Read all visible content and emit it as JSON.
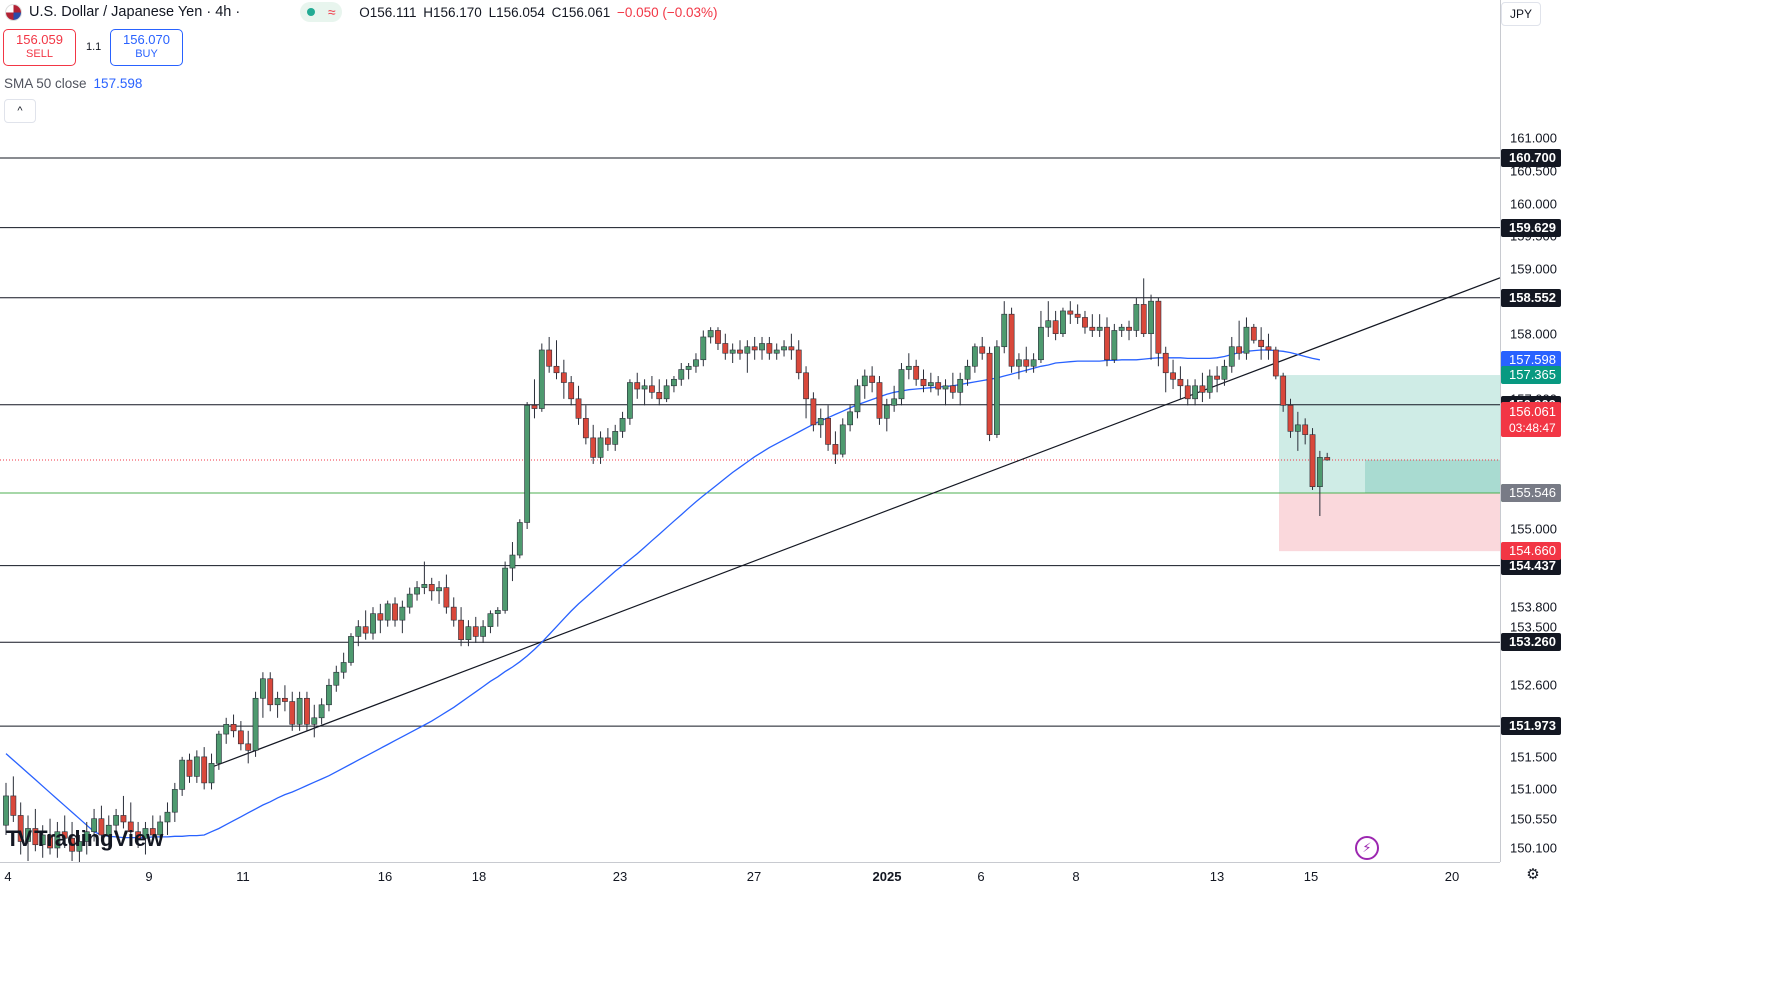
{
  "header": {
    "title": "U.S. Dollar / Japanese Yen · 4h ·",
    "wave_symbol": "≈",
    "ohlc": {
      "o": "O156.111",
      "h": "H156.170",
      "l": "L156.054",
      "c": "C156.061",
      "chg": "−0.050 (−0.03%)"
    }
  },
  "trade": {
    "sell_price": "156.059",
    "sell_label": "SELL",
    "spread": "1.1",
    "buy_price": "156.070",
    "buy_label": "BUY"
  },
  "indicator": {
    "label": "SMA 50 close",
    "value": "157.598",
    "collapse": "^"
  },
  "axis": {
    "currency": "JPY"
  },
  "colors": {
    "up": "#4e9a6f",
    "down": "#d9483b",
    "sma": "#2962ff",
    "tp_zone": "#bfe6dd",
    "sl_zone": "#f9d4d8"
  },
  "chart_data": {
    "type": "candlestick",
    "symbol": "USD/JPY",
    "timeframe": "4h",
    "y_ticks": [
      "161.000",
      "160.500",
      "160.000",
      "159.500",
      "159.000",
      "158.500",
      "158.000",
      "157.500",
      "157.000",
      "156.500",
      "155.500",
      "155.000",
      "154.500",
      "153.800",
      "153.500",
      "152.600",
      "151.500",
      "151.000",
      "150.550",
      "150.100"
    ],
    "x_ticks": [
      "4",
      "9",
      "11",
      "16",
      "18",
      "23",
      "27",
      "2025",
      "6",
      "8",
      "13",
      "15",
      "20"
    ],
    "horizontal_levels": [
      160.7,
      159.629,
      158.552,
      156.909,
      154.437,
      153.26,
      151.973
    ],
    "current_price": 156.061,
    "countdown": "03:48:47",
    "sma_50": 157.598,
    "sma_label_value": "157.598",
    "position": {
      "target": "157.365",
      "entry": "155.553",
      "low_marker": "155.546",
      "stop": "154.660"
    },
    "level_labels": [
      "160.700",
      "159.629",
      "158.552",
      "156.909",
      "154.437",
      "153.260",
      "151.973"
    ],
    "trendline": {
      "from": {
        "date": "Dec 10",
        "price": 151.35
      },
      "to": {
        "date": "Jan 16",
        "price": 157.75
      }
    },
    "candles": [
      [
        150.45,
        151.1,
        150.3,
        150.9
      ],
      [
        150.9,
        151.2,
        150.5,
        150.6
      ],
      [
        150.6,
        150.8,
        150.0,
        150.2
      ],
      [
        150.2,
        150.6,
        149.9,
        150.4
      ],
      [
        150.4,
        150.7,
        150.05,
        150.15
      ],
      [
        150.15,
        150.45,
        149.95,
        150.3
      ],
      [
        150.3,
        150.55,
        150.0,
        150.1
      ],
      [
        150.1,
        150.5,
        149.95,
        150.35
      ],
      [
        150.35,
        150.6,
        150.1,
        150.25
      ],
      [
        150.25,
        150.5,
        149.9,
        150.05
      ],
      [
        150.05,
        150.3,
        149.85,
        150.2
      ],
      [
        150.2,
        150.5,
        150.0,
        150.35
      ],
      [
        150.35,
        150.7,
        150.2,
        150.55
      ],
      [
        150.55,
        150.75,
        150.2,
        150.3
      ],
      [
        150.3,
        150.6,
        150.1,
        150.45
      ],
      [
        150.45,
        150.7,
        150.3,
        150.6
      ],
      [
        150.6,
        150.9,
        150.4,
        150.5
      ],
      [
        150.5,
        150.8,
        150.2,
        150.35
      ],
      [
        150.35,
        150.5,
        150.1,
        150.25
      ],
      [
        150.25,
        150.5,
        150.0,
        150.4
      ],
      [
        150.4,
        150.6,
        150.2,
        150.3
      ],
      [
        150.3,
        150.6,
        150.15,
        150.5
      ],
      [
        150.5,
        150.8,
        150.3,
        150.65
      ],
      [
        150.65,
        151.1,
        150.5,
        151.0
      ],
      [
        151.0,
        151.5,
        150.9,
        151.45
      ],
      [
        151.45,
        151.55,
        151.1,
        151.2
      ],
      [
        151.2,
        151.6,
        151.1,
        151.5
      ],
      [
        151.5,
        151.65,
        151.0,
        151.1
      ],
      [
        151.1,
        151.55,
        151.0,
        151.4
      ],
      [
        151.4,
        151.9,
        151.3,
        151.85
      ],
      [
        151.85,
        152.1,
        151.7,
        152.0
      ],
      [
        152.0,
        152.15,
        151.8,
        151.9
      ],
      [
        151.9,
        152.05,
        151.6,
        151.7
      ],
      [
        151.7,
        151.9,
        151.4,
        151.6
      ],
      [
        151.6,
        152.5,
        151.5,
        152.4
      ],
      [
        152.4,
        152.8,
        152.1,
        152.7
      ],
      [
        152.7,
        152.8,
        152.2,
        152.3
      ],
      [
        152.3,
        152.5,
        152.1,
        152.4
      ],
      [
        152.4,
        152.6,
        152.2,
        152.35
      ],
      [
        152.35,
        152.5,
        151.9,
        152.0
      ],
      [
        152.0,
        152.5,
        151.9,
        152.4
      ],
      [
        152.4,
        152.5,
        151.9,
        152.0
      ],
      [
        152.0,
        152.3,
        151.8,
        152.1
      ],
      [
        152.1,
        152.4,
        152.0,
        152.3
      ],
      [
        152.3,
        152.7,
        152.2,
        152.6
      ],
      [
        152.6,
        152.9,
        152.5,
        152.8
      ],
      [
        152.8,
        153.1,
        152.7,
        152.95
      ],
      [
        152.95,
        153.4,
        152.9,
        153.35
      ],
      [
        153.35,
        153.6,
        153.2,
        153.5
      ],
      [
        153.5,
        153.75,
        153.3,
        153.4
      ],
      [
        153.4,
        153.8,
        153.3,
        153.7
      ],
      [
        153.7,
        153.85,
        153.4,
        153.6
      ],
      [
        153.6,
        153.9,
        153.5,
        153.85
      ],
      [
        153.85,
        153.95,
        153.5,
        153.6
      ],
      [
        153.6,
        153.9,
        153.4,
        153.8
      ],
      [
        153.8,
        154.1,
        153.7,
        154.0
      ],
      [
        154.0,
        154.2,
        153.9,
        154.1
      ],
      [
        154.1,
        154.5,
        154.0,
        154.15
      ],
      [
        154.15,
        154.25,
        153.9,
        154.05
      ],
      [
        154.05,
        154.2,
        153.85,
        154.1
      ],
      [
        154.1,
        154.3,
        153.7,
        153.8
      ],
      [
        153.8,
        153.95,
        153.5,
        153.6
      ],
      [
        153.6,
        153.8,
        153.2,
        153.3
      ],
      [
        153.3,
        153.6,
        153.2,
        153.5
      ],
      [
        153.5,
        153.65,
        153.25,
        153.35
      ],
      [
        153.35,
        153.6,
        153.25,
        153.5
      ],
      [
        153.5,
        153.75,
        153.4,
        153.7
      ],
      [
        153.7,
        153.8,
        153.5,
        153.75
      ],
      [
        153.75,
        154.5,
        153.7,
        154.4
      ],
      [
        154.4,
        154.8,
        154.2,
        154.6
      ],
      [
        154.6,
        155.15,
        154.55,
        155.1
      ],
      [
        155.1,
        156.95,
        155.0,
        156.9
      ],
      [
        156.9,
        157.3,
        156.7,
        156.85
      ],
      [
        156.85,
        157.85,
        156.8,
        157.75
      ],
      [
        157.75,
        157.95,
        157.4,
        157.5
      ],
      [
        157.5,
        157.9,
        157.3,
        157.4
      ],
      [
        157.4,
        157.6,
        157.0,
        157.25
      ],
      [
        157.25,
        157.35,
        156.9,
        157.0
      ],
      [
        157.0,
        157.2,
        156.6,
        156.7
      ],
      [
        156.7,
        156.9,
        156.3,
        156.4
      ],
      [
        156.4,
        156.6,
        156.0,
        156.1
      ],
      [
        156.1,
        156.5,
        156.0,
        156.4
      ],
      [
        156.4,
        156.55,
        156.2,
        156.3
      ],
      [
        156.3,
        156.6,
        156.2,
        156.5
      ],
      [
        156.5,
        156.8,
        156.4,
        156.7
      ],
      [
        156.7,
        157.3,
        156.6,
        157.25
      ],
      [
        157.25,
        157.4,
        157.0,
        157.15
      ],
      [
        157.15,
        157.3,
        156.9,
        157.2
      ],
      [
        157.2,
        157.35,
        157.0,
        157.1
      ],
      [
        157.1,
        157.3,
        156.9,
        157.0
      ],
      [
        157.0,
        157.3,
        156.95,
        157.2
      ],
      [
        157.2,
        157.35,
        157.1,
        157.3
      ],
      [
        157.3,
        157.55,
        157.2,
        157.45
      ],
      [
        157.45,
        157.55,
        157.3,
        157.5
      ],
      [
        157.5,
        157.7,
        157.4,
        157.6
      ],
      [
        157.6,
        158.05,
        157.5,
        157.95
      ],
      [
        157.95,
        158.1,
        157.85,
        158.05
      ],
      [
        158.05,
        158.1,
        157.75,
        157.85
      ],
      [
        157.85,
        158.0,
        157.6,
        157.7
      ],
      [
        157.7,
        157.85,
        157.55,
        157.75
      ],
      [
        157.75,
        157.9,
        157.6,
        157.7
      ],
      [
        157.7,
        157.9,
        157.4,
        157.8
      ],
      [
        157.8,
        157.95,
        157.6,
        157.75
      ],
      [
        157.75,
        157.95,
        157.6,
        157.85
      ],
      [
        157.85,
        157.95,
        157.6,
        157.7
      ],
      [
        157.7,
        157.85,
        157.6,
        157.75
      ],
      [
        157.75,
        157.9,
        157.65,
        157.8
      ],
      [
        157.8,
        158.0,
        157.6,
        157.75
      ],
      [
        157.75,
        157.9,
        157.3,
        157.4
      ],
      [
        157.4,
        157.5,
        156.7,
        157.0
      ],
      [
        157.0,
        157.1,
        156.5,
        156.6
      ],
      [
        156.6,
        156.85,
        156.4,
        156.7
      ],
      [
        156.7,
        156.9,
        156.2,
        156.3
      ],
      [
        156.3,
        156.5,
        156.0,
        156.15
      ],
      [
        156.15,
        156.7,
        156.1,
        156.6
      ],
      [
        156.6,
        156.9,
        156.5,
        156.8
      ],
      [
        156.8,
        157.3,
        156.7,
        157.2
      ],
      [
        157.2,
        157.45,
        157.0,
        157.35
      ],
      [
        157.35,
        157.5,
        157.1,
        157.25
      ],
      [
        157.25,
        157.35,
        156.6,
        156.7
      ],
      [
        156.7,
        157.0,
        156.5,
        156.9
      ],
      [
        156.9,
        157.2,
        156.8,
        157.0
      ],
      [
        157.0,
        157.55,
        156.9,
        157.45
      ],
      [
        157.45,
        157.7,
        157.3,
        157.5
      ],
      [
        157.5,
        157.6,
        157.2,
        157.3
      ],
      [
        157.3,
        157.45,
        157.1,
        157.2
      ],
      [
        157.2,
        157.4,
        157.1,
        157.25
      ],
      [
        157.25,
        157.35,
        157.05,
        157.15
      ],
      [
        157.15,
        157.3,
        156.9,
        157.2
      ],
      [
        157.2,
        157.4,
        157.0,
        157.1
      ],
      [
        157.1,
        157.4,
        156.9,
        157.3
      ],
      [
        157.3,
        157.6,
        157.2,
        157.5
      ],
      [
        157.5,
        157.85,
        157.4,
        157.8
      ],
      [
        157.8,
        157.95,
        157.6,
        157.7
      ],
      [
        157.7,
        157.8,
        156.35,
        156.45
      ],
      [
        156.45,
        157.9,
        156.4,
        157.8
      ],
      [
        157.8,
        158.5,
        157.7,
        158.3
      ],
      [
        158.3,
        158.4,
        157.4,
        157.5
      ],
      [
        157.5,
        157.7,
        157.3,
        157.6
      ],
      [
        157.6,
        157.8,
        157.4,
        157.5
      ],
      [
        157.5,
        157.7,
        157.4,
        157.6
      ],
      [
        157.6,
        158.35,
        157.55,
        158.1
      ],
      [
        158.1,
        158.5,
        157.95,
        158.2
      ],
      [
        158.2,
        158.35,
        157.9,
        158.0
      ],
      [
        158.0,
        158.4,
        157.95,
        158.35
      ],
      [
        158.35,
        158.5,
        158.15,
        158.3
      ],
      [
        158.3,
        158.45,
        158.15,
        158.25
      ],
      [
        158.25,
        158.35,
        158.0,
        158.1
      ],
      [
        158.1,
        158.3,
        157.95,
        158.05
      ],
      [
        158.05,
        158.3,
        157.95,
        158.1
      ],
      [
        158.1,
        158.25,
        157.5,
        157.6
      ],
      [
        157.6,
        158.15,
        157.55,
        158.05
      ],
      [
        158.05,
        158.15,
        157.95,
        158.1
      ],
      [
        158.1,
        158.2,
        157.9,
        158.05
      ],
      [
        158.05,
        158.55,
        157.95,
        158.45
      ],
      [
        158.45,
        158.85,
        157.95,
        158.0
      ],
      [
        158.0,
        158.6,
        157.6,
        158.5
      ],
      [
        158.5,
        158.55,
        157.5,
        157.7
      ],
      [
        157.7,
        157.8,
        157.1,
        157.4
      ],
      [
        157.4,
        157.6,
        157.15,
        157.3
      ],
      [
        157.3,
        157.5,
        157.0,
        157.2
      ],
      [
        157.2,
        157.3,
        156.9,
        157.0
      ],
      [
        157.0,
        157.3,
        156.9,
        157.2
      ],
      [
        157.2,
        157.4,
        156.95,
        157.1
      ],
      [
        157.1,
        157.45,
        157.0,
        157.35
      ],
      [
        157.35,
        157.5,
        157.1,
        157.3
      ],
      [
        157.3,
        157.6,
        157.2,
        157.5
      ],
      [
        157.5,
        157.95,
        157.4,
        157.8
      ],
      [
        157.8,
        158.2,
        157.6,
        157.7
      ],
      [
        157.7,
        158.25,
        157.6,
        158.1
      ],
      [
        158.1,
        158.15,
        157.85,
        157.9
      ],
      [
        157.9,
        158.1,
        157.6,
        157.8
      ],
      [
        157.8,
        158.0,
        157.6,
        157.75
      ],
      [
        157.75,
        157.8,
        157.3,
        157.35
      ],
      [
        157.35,
        157.4,
        156.8,
        156.9
      ],
      [
        156.9,
        157.0,
        156.4,
        156.5
      ],
      [
        156.5,
        156.8,
        156.2,
        156.6
      ],
      [
        156.6,
        156.7,
        156.3,
        156.45
      ],
      [
        156.45,
        156.55,
        155.6,
        155.65
      ],
      [
        155.65,
        156.2,
        155.2,
        156.1
      ],
      [
        156.1,
        156.17,
        156.05,
        156.06
      ]
    ],
    "sma_series": [
      151.55,
      151.45,
      151.35,
      151.25,
      151.15,
      151.05,
      150.95,
      150.85,
      150.75,
      150.65,
      150.55,
      150.45,
      150.35,
      150.3,
      150.28,
      150.27,
      150.26,
      150.26,
      150.26,
      150.26,
      150.27,
      150.27,
      150.27,
      150.28,
      150.28,
      150.29,
      150.29,
      150.3,
      150.35,
      150.4,
      150.46,
      150.52,
      150.58,
      150.64,
      150.7,
      150.76,
      150.81,
      150.87,
      150.92,
      150.96,
      151.01,
      151.06,
      151.11,
      151.16,
      151.21,
      151.27,
      151.33,
      151.39,
      151.45,
      151.51,
      151.57,
      151.63,
      151.69,
      151.75,
      151.81,
      151.87,
      151.93,
      151.99,
      152.05,
      152.12,
      152.19,
      152.26,
      152.34,
      152.42,
      152.5,
      152.58,
      152.66,
      152.73,
      152.81,
      152.88,
      152.96,
      153.05,
      153.15,
      153.26,
      153.38,
      153.5,
      153.62,
      153.74,
      153.85,
      153.95,
      154.05,
      154.15,
      154.25,
      154.35,
      154.44,
      154.53,
      154.62,
      154.72,
      154.82,
      154.92,
      155.02,
      155.12,
      155.22,
      155.32,
      155.42,
      155.51,
      155.6,
      155.69,
      155.78,
      155.87,
      155.95,
      156.03,
      156.11,
      156.18,
      156.25,
      156.31,
      156.37,
      156.43,
      156.49,
      156.55,
      156.61,
      156.66,
      156.71,
      156.76,
      156.81,
      156.86,
      156.91,
      156.95,
      156.99,
      157.03,
      157.07,
      157.1,
      157.12,
      157.14,
      157.15,
      157.16,
      157.17,
      157.18,
      157.19,
      157.2,
      157.22,
      157.24,
      157.26,
      157.28,
      157.3,
      157.32,
      157.35,
      157.38,
      157.41,
      157.44,
      157.47,
      157.5,
      157.52,
      157.55,
      157.56,
      157.57,
      157.58,
      157.58,
      157.58,
      157.58,
      157.59,
      157.59,
      157.6,
      157.6,
      157.6,
      157.61,
      157.62,
      157.63,
      157.63,
      157.63,
      157.63,
      157.62,
      157.62,
      157.62,
      157.62,
      157.63,
      157.65,
      157.68,
      157.71,
      157.73,
      157.74,
      157.75,
      157.75,
      157.74,
      157.73,
      157.71,
      157.68,
      157.65,
      157.62,
      157.6
    ]
  }
}
